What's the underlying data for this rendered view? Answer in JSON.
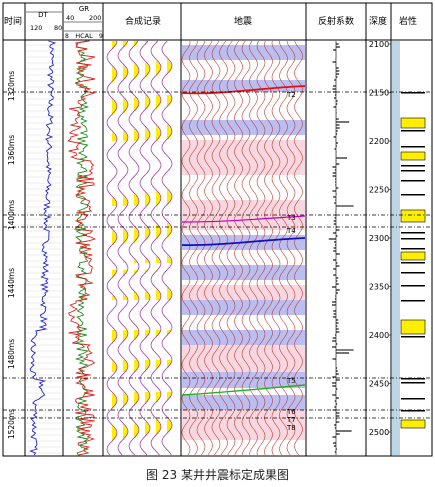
{
  "headers": {
    "time": "时间",
    "dt": "DT",
    "dt_scale_left": "120",
    "dt_scale_right": "80",
    "gr": "GR",
    "gr_scale_left": "40",
    "gr_scale_right": "200",
    "hcal": "HCAL",
    "hcal_scale_left": "8",
    "hcal_scale_right": "9",
    "synthetic": "合成记录",
    "seismic": "地震",
    "reflectivity": "反射系数",
    "depth": "深度",
    "lithology": "岩性"
  },
  "time_labels": [
    "1320ms",
    "1360ms",
    "1400ms",
    "1440ms",
    "1480ms",
    "1520ms"
  ],
  "depth_labels": [
    "2100",
    "2150",
    "2200",
    "2250",
    "2300",
    "2350",
    "2400",
    "2450",
    "2500"
  ],
  "horizon_labels": [
    "T2",
    "T3",
    "T4",
    "T5",
    "T6",
    "T7",
    "T8"
  ],
  "caption": "图 23  某井井震标定成果图",
  "colors": {
    "dt_curve": "#1f1fd0",
    "gr_curve": "#e02020",
    "hcal_curve": "#1a8a1a",
    "synthetic_fill": "#ffee00",
    "synthetic_trace": "#9a2aa8",
    "seismic_trace": "#c0392b",
    "seismic_blue": "#3a46d6",
    "seismic_pink": "#f3b7c6",
    "horizon_red": "#e01010",
    "horizon_blue": "#1010c0",
    "horizon_green": "#20b020",
    "horizon_magenta": "#c000c0",
    "lith_yellow": "#ffee00"
  }
}
